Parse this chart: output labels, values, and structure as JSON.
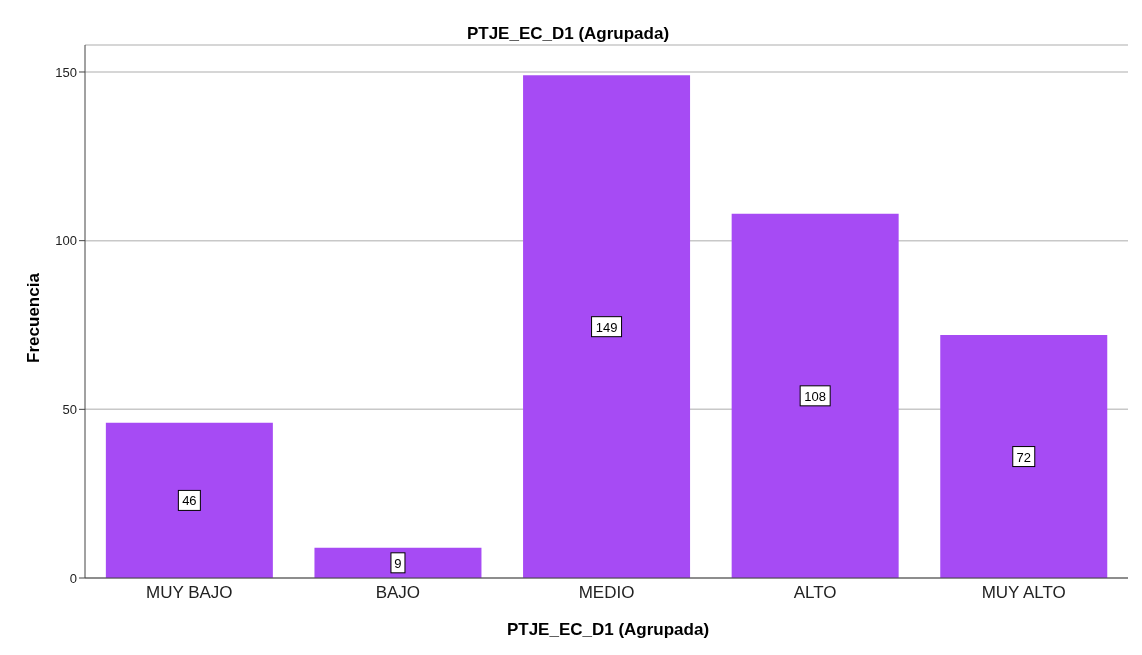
{
  "chart_data": {
    "type": "bar",
    "title": "PTJE_EC_D1 (Agrupada)",
    "xlabel": "PTJE_EC_D1 (Agrupada)",
    "ylabel": "Frecuencia",
    "categories": [
      "MUY BAJO",
      "BAJO",
      "MEDIO",
      "ALTO",
      "MUY ALTO"
    ],
    "values": [
      46,
      9,
      149,
      108,
      72
    ],
    "color": "#a64bf4",
    "ylim": [
      0,
      158
    ],
    "yticks": [
      0,
      50,
      100,
      150
    ],
    "grid": "y",
    "data_labels": true
  }
}
